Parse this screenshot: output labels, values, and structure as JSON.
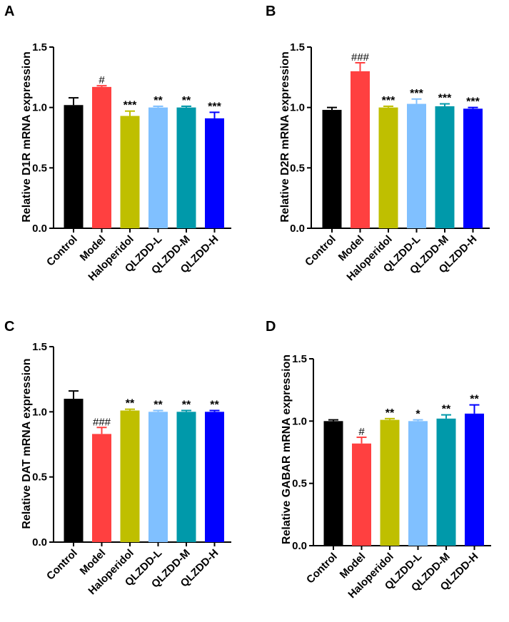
{
  "colors": {
    "Control": "#000000",
    "Model": "#ff4040",
    "Haloperidol": "#bfbf00",
    "QLZDD-L": "#80c0ff",
    "QLZDD-M": "#0099aa",
    "QLZDD-H": "#0000ff"
  },
  "chart_data": [
    {
      "panel": "A",
      "type": "bar",
      "ylabel": "Relative D1R mRNA expression",
      "ylim": [
        0,
        1.5
      ],
      "yticks": [
        "0.0",
        "0.5",
        "1.0",
        "1.5"
      ],
      "categories": [
        "Control",
        "Model",
        "Haloperidol",
        "QLZDD-L",
        "QLZDD-M",
        "QLZDD-H"
      ],
      "values": [
        1.02,
        1.17,
        0.93,
        1.0,
        1.0,
        0.91
      ],
      "errors": [
        0.06,
        0.01,
        0.04,
        0.01,
        0.01,
        0.05
      ],
      "annotations": [
        "",
        "#",
        "***",
        "**",
        "**",
        "***"
      ]
    },
    {
      "panel": "B",
      "type": "bar",
      "ylabel": "Relative D2R mRNA expression",
      "ylim": [
        0,
        1.5
      ],
      "yticks": [
        "0.0",
        "0.5",
        "1.0",
        "1.5"
      ],
      "categories": [
        "Control",
        "Model",
        "Haloperidol",
        "QLZDD-L",
        "QLZDD-M",
        "QLZDD-H"
      ],
      "values": [
        0.98,
        1.3,
        1.0,
        1.03,
        1.01,
        0.99
      ],
      "errors": [
        0.02,
        0.07,
        0.01,
        0.04,
        0.02,
        0.01
      ],
      "annotations": [
        "",
        "###",
        "***",
        "***",
        "***",
        "***"
      ]
    },
    {
      "panel": "C",
      "type": "bar",
      "ylabel": "Relative DAT mRNA expression",
      "ylim": [
        0,
        1.5
      ],
      "yticks": [
        "0.0",
        "0.5",
        "1.0",
        "1.5"
      ],
      "categories": [
        "Control",
        "Model",
        "Haloperidol",
        "QLZDD-L",
        "QLZDD-M",
        "QLZDD-H"
      ],
      "values": [
        1.1,
        0.83,
        1.01,
        1.0,
        1.0,
        1.0
      ],
      "errors": [
        0.06,
        0.05,
        0.01,
        0.01,
        0.01,
        0.01
      ],
      "annotations": [
        "",
        "###",
        "**",
        "**",
        "**",
        "**"
      ]
    },
    {
      "panel": "D",
      "type": "bar",
      "ylabel": "Relative GABAR mRNA expression",
      "ylim": [
        0,
        1.5
      ],
      "yticks": [
        "0.0",
        "0.5",
        "1.0",
        "1.5"
      ],
      "categories": [
        "Control",
        "Model",
        "Haloperidol",
        "QLZDD-L",
        "QLZDD-M",
        "QLZDD-H"
      ],
      "values": [
        1.0,
        0.82,
        1.01,
        1.0,
        1.02,
        1.06
      ],
      "errors": [
        0.01,
        0.05,
        0.01,
        0.01,
        0.03,
        0.07
      ],
      "annotations": [
        "",
        "#",
        "**",
        "*",
        "**",
        "**"
      ]
    }
  ]
}
